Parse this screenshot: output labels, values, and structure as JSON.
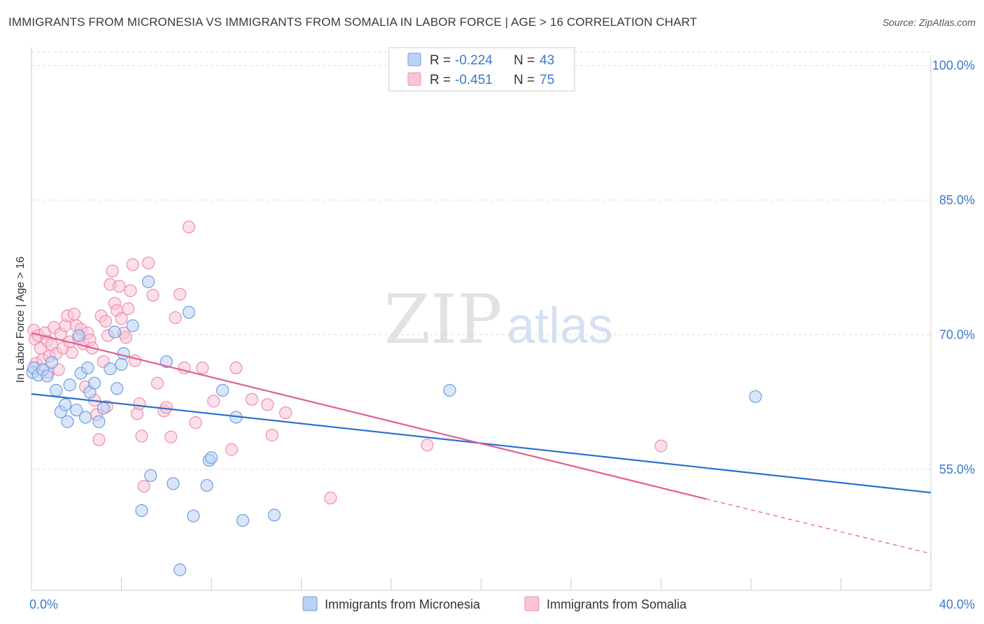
{
  "title": "IMMIGRANTS FROM MICRONESIA VS IMMIGRANTS FROM SOMALIA IN LABOR FORCE | AGE > 16 CORRELATION CHART",
  "source": "Source: ZipAtlas.com",
  "watermark": {
    "zip": "ZIP",
    "atlas": "atlas"
  },
  "colors": {
    "micronesia_fill": "#b9d1f5",
    "micronesia_stroke": "#6d9ee0",
    "micronesia_line": "#2b6fd0",
    "somalia_fill": "#f9c5d5",
    "somalia_stroke": "#ec8fad",
    "somalia_line": "#e0608c",
    "axis_label": "#3b78cc",
    "grid": "#dcdcdc"
  },
  "stats_box": {
    "rows": [
      {
        "r_label": "R = ",
        "r_value": "-0.224",
        "n_label": "N = ",
        "n_value": "43"
      },
      {
        "r_label": "R = ",
        "r_value": "-0.451",
        "n_label": "N = ",
        "n_value": "75"
      }
    ]
  },
  "chart_data": {
    "type": "scatter",
    "title": "IMMIGRANTS FROM MICRONESIA VS IMMIGRANTS FROM SOMALIA IN LABOR FORCE | AGE > 16 CORRELATION CHART",
    "xlabel": "",
    "ylabel": "In Labor Force | Age > 16",
    "xlim": [
      0,
      40
    ],
    "ylim": [
      41.5,
      102
    ],
    "x_tick_labels": [
      {
        "value": 0,
        "label": "0.0%"
      },
      {
        "value": 40,
        "label": "40.0%"
      }
    ],
    "y_tick_labels": [
      {
        "value": 100,
        "label": "100.0%"
      },
      {
        "value": 85,
        "label": "85.0%"
      },
      {
        "value": 70,
        "label": "70.0%"
      },
      {
        "value": 55,
        "label": "55.0%"
      }
    ],
    "grid": true,
    "legend_position": "bottom-center",
    "series": [
      {
        "name": "Immigrants from Micronesia",
        "r": -0.224,
        "n": 43,
        "trend": {
          "x": [
            0,
            40
          ],
          "y": [
            63.4,
            52.4
          ]
        },
        "points": [
          [
            0.05,
            65.8
          ],
          [
            0.1,
            66.3
          ],
          [
            0.3,
            65.5
          ],
          [
            0.5,
            66.1
          ],
          [
            0.7,
            65.4
          ],
          [
            0.9,
            66.9
          ],
          [
            1.1,
            63.8
          ],
          [
            1.3,
            61.4
          ],
          [
            1.5,
            62.2
          ],
          [
            1.6,
            60.3
          ],
          [
            1.7,
            64.4
          ],
          [
            2.0,
            61.6
          ],
          [
            2.1,
            69.9
          ],
          [
            2.2,
            65.7
          ],
          [
            2.4,
            60.8
          ],
          [
            2.5,
            66.3
          ],
          [
            2.6,
            63.6
          ],
          [
            2.8,
            64.6
          ],
          [
            3.0,
            60.3
          ],
          [
            3.2,
            61.8
          ],
          [
            3.5,
            66.2
          ],
          [
            3.7,
            70.3
          ],
          [
            3.8,
            64.0
          ],
          [
            4.0,
            66.7
          ],
          [
            4.1,
            67.9
          ],
          [
            4.5,
            71.0
          ],
          [
            4.9,
            50.4
          ],
          [
            5.2,
            75.9
          ],
          [
            5.3,
            54.3
          ],
          [
            6.0,
            67.0
          ],
          [
            6.3,
            53.4
          ],
          [
            6.6,
            43.8
          ],
          [
            7.0,
            72.5
          ],
          [
            7.2,
            49.8
          ],
          [
            7.8,
            53.2
          ],
          [
            7.9,
            56.0
          ],
          [
            8.0,
            56.3
          ],
          [
            8.5,
            63.8
          ],
          [
            9.1,
            60.8
          ],
          [
            9.4,
            49.3
          ],
          [
            10.8,
            49.9
          ],
          [
            18.6,
            63.8
          ],
          [
            32.2,
            63.1
          ]
        ]
      },
      {
        "name": "Immigrants from Somalia",
        "r": -0.451,
        "n": 75,
        "trend": {
          "x": [
            0,
            30
          ],
          "y": [
            70.2,
            51.7
          ]
        },
        "trend_dashed": {
          "x": [
            30,
            40
          ],
          "y": [
            51.7,
            45.6
          ]
        },
        "points": [
          [
            0.1,
            70.5
          ],
          [
            0.15,
            69.5
          ],
          [
            0.2,
            66.8
          ],
          [
            0.3,
            69.9
          ],
          [
            0.4,
            68.5
          ],
          [
            0.5,
            67.2
          ],
          [
            0.6,
            70.2
          ],
          [
            0.7,
            69.3
          ],
          [
            0.75,
            65.8
          ],
          [
            0.8,
            67.6
          ],
          [
            0.9,
            68.9
          ],
          [
            1.0,
            70.8
          ],
          [
            1.1,
            67.9
          ],
          [
            1.2,
            66.1
          ],
          [
            1.3,
            70.1
          ],
          [
            1.4,
            68.5
          ],
          [
            1.5,
            71.0
          ],
          [
            1.6,
            72.1
          ],
          [
            1.7,
            69.2
          ],
          [
            1.8,
            68.0
          ],
          [
            1.9,
            72.3
          ],
          [
            2.0,
            71.0
          ],
          [
            2.1,
            69.6
          ],
          [
            2.2,
            70.6
          ],
          [
            2.3,
            69.0
          ],
          [
            2.4,
            64.2
          ],
          [
            2.5,
            70.2
          ],
          [
            2.6,
            69.4
          ],
          [
            2.7,
            68.5
          ],
          [
            2.8,
            62.7
          ],
          [
            2.9,
            61.1
          ],
          [
            3.0,
            58.3
          ],
          [
            3.1,
            72.1
          ],
          [
            3.2,
            67.0
          ],
          [
            3.3,
            71.5
          ],
          [
            3.4,
            69.9
          ],
          [
            3.5,
            75.6
          ],
          [
            3.6,
            77.1
          ],
          [
            3.7,
            73.5
          ],
          [
            3.8,
            72.7
          ],
          [
            3.9,
            75.4
          ],
          [
            4.0,
            71.8
          ],
          [
            4.1,
            70.2
          ],
          [
            4.2,
            69.7
          ],
          [
            4.3,
            72.9
          ],
          [
            4.4,
            74.9
          ],
          [
            4.5,
            77.8
          ],
          [
            4.6,
            67.1
          ],
          [
            4.7,
            61.2
          ],
          [
            4.8,
            62.3
          ],
          [
            4.9,
            58.7
          ],
          [
            5.0,
            53.1
          ],
          [
            5.2,
            78.0
          ],
          [
            5.4,
            74.4
          ],
          [
            5.6,
            64.6
          ],
          [
            5.9,
            61.5
          ],
          [
            6.0,
            61.9
          ],
          [
            6.2,
            58.6
          ],
          [
            6.4,
            71.9
          ],
          [
            6.6,
            74.5
          ],
          [
            6.8,
            66.3
          ],
          [
            7.0,
            82.0
          ],
          [
            7.3,
            60.2
          ],
          [
            7.6,
            66.3
          ],
          [
            8.1,
            62.6
          ],
          [
            8.9,
            57.2
          ],
          [
            9.1,
            66.3
          ],
          [
            9.8,
            62.8
          ],
          [
            10.5,
            62.2
          ],
          [
            10.7,
            58.8
          ],
          [
            11.3,
            61.3
          ],
          [
            13.3,
            51.8
          ],
          [
            17.6,
            57.7
          ],
          [
            28.0,
            57.6
          ],
          [
            3.35,
            62.0
          ]
        ]
      }
    ]
  }
}
